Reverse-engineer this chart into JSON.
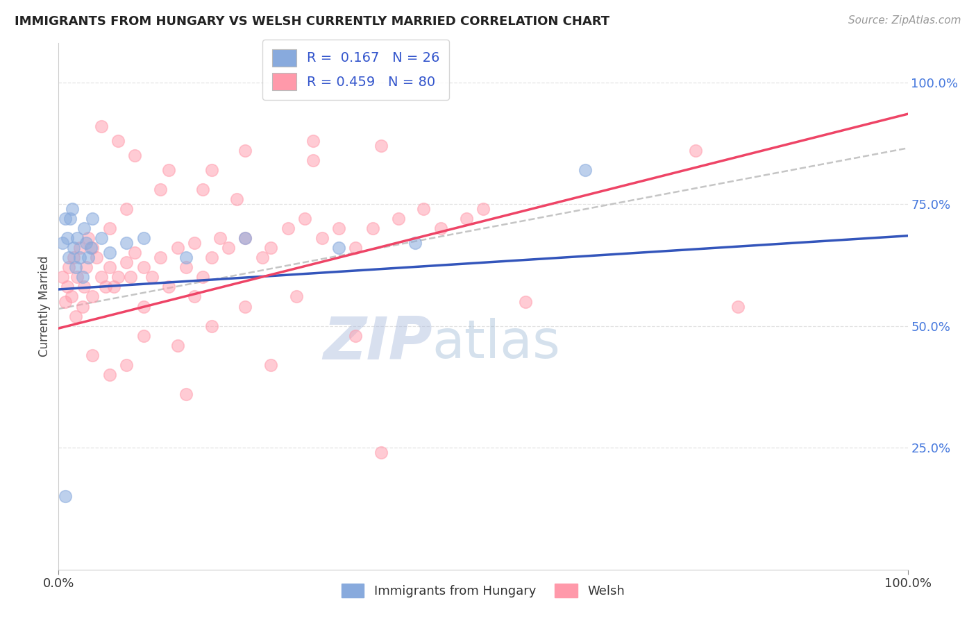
{
  "title": "IMMIGRANTS FROM HUNGARY VS WELSH CURRENTLY MARRIED CORRELATION CHART",
  "source": "Source: ZipAtlas.com",
  "ylabel": "Currently Married",
  "legend_label1": "Immigrants from Hungary",
  "legend_label2": "Welsh",
  "R1": 0.167,
  "N1": 26,
  "R2": 0.459,
  "N2": 80,
  "xlim": [
    0.0,
    1.0
  ],
  "ylim": [
    0.0,
    1.08
  ],
  "ytick_positions": [
    0.25,
    0.5,
    0.75,
    1.0
  ],
  "ytick_labels": [
    "25.0%",
    "50.0%",
    "75.0%",
    "100.0%"
  ],
  "color_blue": "#88AADD",
  "color_pink": "#FF99AA",
  "color_blue_line": "#3355BB",
  "color_pink_line": "#EE4466",
  "color_gray_dash": "#BBBBBB",
  "blue_line_x0": 0.0,
  "blue_line_y0": 0.575,
  "blue_line_x1": 1.0,
  "blue_line_y1": 0.685,
  "pink_line_x0": 0.0,
  "pink_line_y0": 0.495,
  "pink_line_x1": 1.0,
  "pink_line_y1": 0.935,
  "gray_line_x0": 0.0,
  "gray_line_y0": 0.535,
  "gray_line_x1": 1.0,
  "gray_line_y1": 0.865,
  "blue_dots_x": [
    0.005,
    0.008,
    0.01,
    0.012,
    0.014,
    0.016,
    0.018,
    0.02,
    0.022,
    0.025,
    0.028,
    0.03,
    0.032,
    0.035,
    0.038,
    0.04,
    0.05,
    0.06,
    0.08,
    0.1,
    0.15,
    0.22,
    0.33,
    0.42,
    0.62,
    0.008
  ],
  "blue_dots_y": [
    0.67,
    0.72,
    0.68,
    0.64,
    0.72,
    0.74,
    0.66,
    0.62,
    0.68,
    0.64,
    0.6,
    0.7,
    0.67,
    0.64,
    0.66,
    0.72,
    0.68,
    0.65,
    0.67,
    0.68,
    0.64,
    0.68,
    0.66,
    0.67,
    0.82,
    0.15
  ],
  "pink_dots_x": [
    0.005,
    0.008,
    0.01,
    0.012,
    0.015,
    0.018,
    0.02,
    0.022,
    0.025,
    0.028,
    0.03,
    0.032,
    0.035,
    0.04,
    0.045,
    0.05,
    0.055,
    0.06,
    0.065,
    0.07,
    0.08,
    0.085,
    0.09,
    0.1,
    0.11,
    0.12,
    0.13,
    0.14,
    0.15,
    0.16,
    0.17,
    0.18,
    0.19,
    0.2,
    0.22,
    0.24,
    0.25,
    0.27,
    0.29,
    0.31,
    0.33,
    0.35,
    0.37,
    0.4,
    0.43,
    0.45,
    0.48,
    0.5,
    0.3,
    0.38,
    0.04,
    0.06,
    0.08,
    0.1,
    0.14,
    0.18,
    0.22,
    0.28,
    0.22,
    0.3,
    0.15,
    0.25,
    0.35,
    0.18,
    0.12,
    0.08,
    0.06,
    0.04,
    0.1,
    0.16,
    0.05,
    0.07,
    0.09,
    0.13,
    0.17,
    0.21,
    0.75,
    0.8,
    0.55,
    0.38
  ],
  "pink_dots_y": [
    0.6,
    0.55,
    0.58,
    0.62,
    0.56,
    0.64,
    0.52,
    0.6,
    0.66,
    0.54,
    0.58,
    0.62,
    0.68,
    0.56,
    0.64,
    0.6,
    0.58,
    0.62,
    0.58,
    0.6,
    0.63,
    0.6,
    0.65,
    0.62,
    0.6,
    0.64,
    0.58,
    0.66,
    0.62,
    0.67,
    0.6,
    0.64,
    0.68,
    0.66,
    0.68,
    0.64,
    0.66,
    0.7,
    0.72,
    0.68,
    0.7,
    0.66,
    0.7,
    0.72,
    0.74,
    0.7,
    0.72,
    0.74,
    0.88,
    0.87,
    0.44,
    0.4,
    0.42,
    0.48,
    0.46,
    0.5,
    0.54,
    0.56,
    0.86,
    0.84,
    0.36,
    0.42,
    0.48,
    0.82,
    0.78,
    0.74,
    0.7,
    0.66,
    0.54,
    0.56,
    0.91,
    0.88,
    0.85,
    0.82,
    0.78,
    0.76,
    0.86,
    0.54,
    0.55,
    0.24
  ],
  "bg_color": "#FFFFFF",
  "grid_color": "#DDDDDD",
  "watermark_text": "ZIPatlas",
  "watermark_color": "#CCDDEE",
  "watermark_alpha": 0.6
}
